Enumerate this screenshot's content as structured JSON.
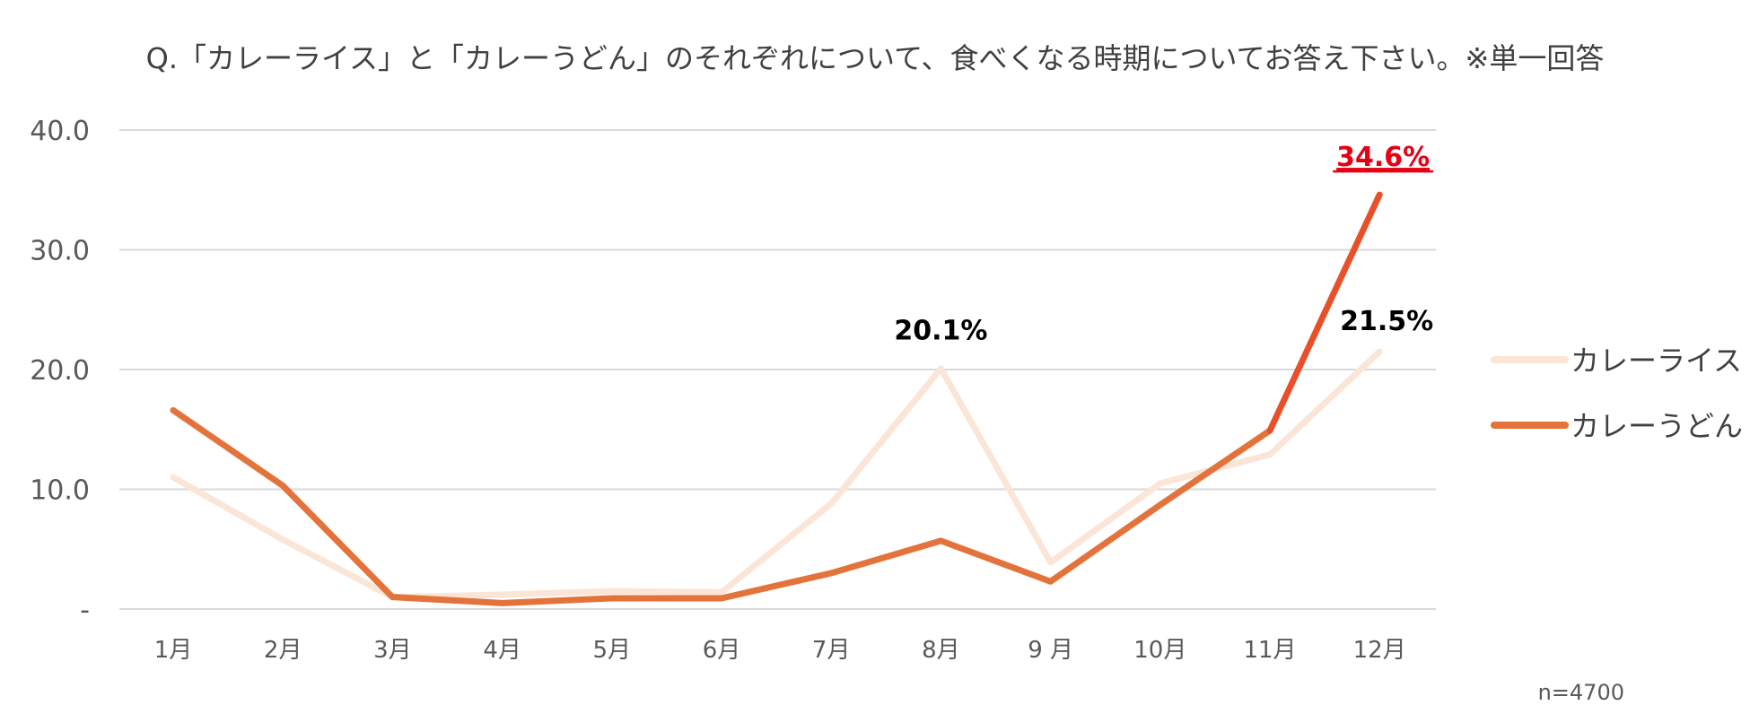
{
  "chart_data": {
    "type": "line",
    "title": "Q.「カレーライス」と「カレーうどん」のそれぞれについて、食べくなる時期についてお答え下さい。※単一回答",
    "categories": [
      "1月",
      "2月",
      "3月",
      "4月",
      "5月",
      "6月",
      "7月",
      "8月",
      "9 月",
      "10月",
      "11月",
      "12月"
    ],
    "y_ticks": [
      "-",
      "10.0",
      "20.0",
      "30.0",
      "40.0"
    ],
    "ylim": [
      0,
      40
    ],
    "grid": true,
    "legend_position": "right",
    "series": [
      {
        "name": "カレーライス",
        "color": "#fbe5d6",
        "values": [
          11.0,
          5.8,
          1.0,
          1.2,
          1.5,
          1.4,
          8.8,
          20.1,
          3.9,
          10.5,
          12.9,
          21.5
        ]
      },
      {
        "name": "カレーうどん",
        "color": "#e3733b",
        "highlight_color": "#e9502a",
        "values": [
          16.6,
          10.3,
          1.0,
          0.5,
          0.9,
          0.9,
          3.0,
          5.7,
          2.3,
          8.7,
          14.9,
          34.6
        ]
      }
    ],
    "annotations": [
      {
        "series": 0,
        "index": 7,
        "text": "20.1%",
        "color": "#000000"
      },
      {
        "series": 0,
        "index": 11,
        "text": "21.5%",
        "color": "#000000"
      },
      {
        "series": 1,
        "index": 11,
        "text": "34.6%",
        "color": "#e60012",
        "underline": true
      }
    ],
    "note": "n=4700"
  }
}
